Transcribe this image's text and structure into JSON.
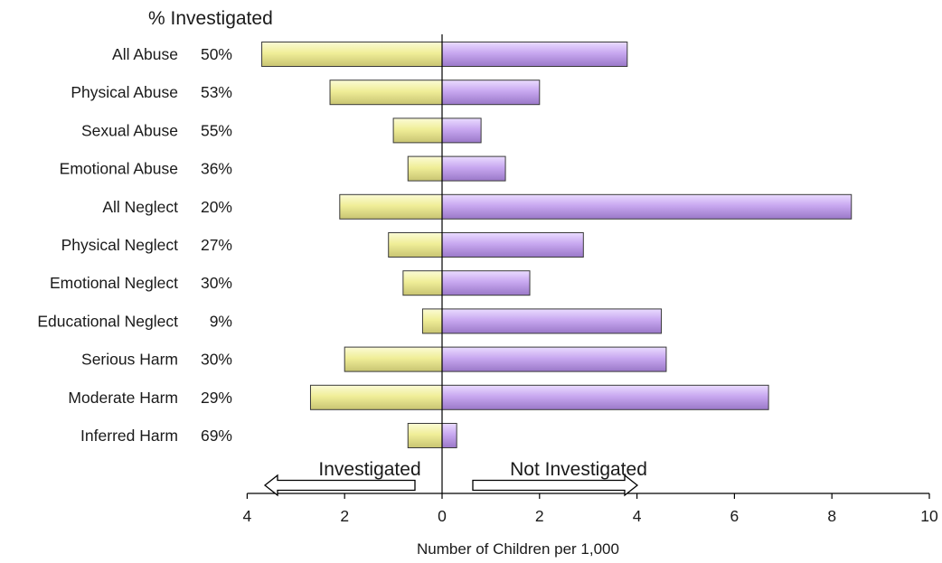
{
  "chart_data": {
    "type": "bar",
    "title": "",
    "column_header": "% Investigated",
    "xlabel": "Number of Children per 1,000",
    "ylabel": "",
    "xlim": [
      -4,
      10
    ],
    "xticks": [
      -4,
      -2,
      0,
      2,
      4,
      6,
      8,
      10
    ],
    "xtick_labels": [
      "4",
      "2",
      "0",
      "2",
      "4",
      "6",
      "8",
      "10"
    ],
    "categories": [
      "All Abuse",
      "Physical Abuse",
      "Sexual Abuse",
      "Emotional Abuse",
      "All Neglect",
      "Physical Neglect",
      "Emotional Neglect",
      "Educational Neglect",
      "Serious Harm",
      "Moderate Harm",
      "Inferred Harm"
    ],
    "percent_investigated": [
      "50%",
      "53%",
      "55%",
      "36%",
      "20%",
      "27%",
      "30%",
      "9%",
      "30%",
      "29%",
      "69%"
    ],
    "series": [
      {
        "name": "Investigated",
        "color": "#f0ee98",
        "values": [
          3.7,
          2.3,
          1.0,
          0.7,
          2.1,
          1.1,
          0.8,
          0.4,
          2.0,
          2.7,
          0.7
        ]
      },
      {
        "name": "Not Investigated",
        "color": "#c8a8f0",
        "values": [
          3.8,
          2.0,
          0.8,
          1.3,
          8.4,
          2.9,
          1.8,
          4.5,
          4.6,
          6.7,
          0.3
        ]
      }
    ],
    "annotations": {
      "left_arrow": "Investigated",
      "right_arrow": "Not Investigated"
    },
    "grid": false,
    "legend": "none"
  }
}
